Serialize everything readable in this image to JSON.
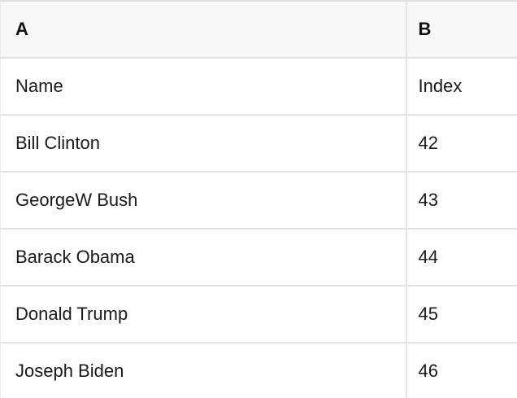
{
  "table": {
    "header": {
      "column_a_label": "A",
      "column_b_label": "B"
    },
    "rows": [
      {
        "name": "Name",
        "index": "Index"
      },
      {
        "name": "Bill Clinton",
        "index": "42"
      },
      {
        "name": "GeorgeW Bush",
        "index": "43"
      },
      {
        "name": "Barack Obama",
        "index": "44"
      },
      {
        "name": "Donald Trump",
        "index": "45"
      },
      {
        "name": "Joseph Biden",
        "index": "46"
      }
    ]
  },
  "colors": {
    "header_background": "#f8f8f8",
    "row_background": "#ffffff",
    "border": "#e2e2e2",
    "text": "#1a1a1a"
  }
}
